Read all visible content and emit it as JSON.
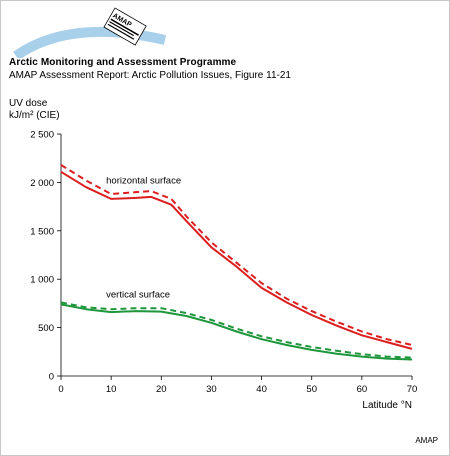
{
  "logo": {
    "text": "AMAP",
    "tagline": "Arctic Monitoring and Assessment Programme"
  },
  "header": {
    "title": "Arctic Monitoring and Assessment Programme",
    "subtitle": "AMAP Assessment Report: Arctic Pollution Issues, Figure 11-21"
  },
  "footer": {
    "credit": "AMAP"
  },
  "colors": {
    "red": "#dc1e1e",
    "green": "#1e963c",
    "logo_arc": "#a9d0ea"
  },
  "chart_data": {
    "type": "line",
    "ylabel_line1": "UV dose",
    "ylabel_line2": "kJ/m² (CIE)",
    "xlabel": "Latitude °N",
    "xlim": [
      0,
      70
    ],
    "ylim": [
      0,
      2500
    ],
    "xticks": [
      0,
      10,
      20,
      30,
      40,
      50,
      60,
      70
    ],
    "yticks": [
      0,
      500,
      1000,
      1500,
      2000,
      2500
    ],
    "ytick_labels": [
      "0",
      "500",
      "1 000",
      "1 500",
      "2 000",
      "2 500"
    ],
    "annotations": [
      {
        "text": "horizontal surface",
        "x": 9,
        "y": 1990
      },
      {
        "text": "vertical surface",
        "x": 9,
        "y": 810
      }
    ],
    "series": [
      {
        "group": "horizontal surface",
        "style": "solid",
        "color": "#dc1e1e",
        "x": [
          0,
          5,
          10,
          15,
          18,
          22,
          25,
          30,
          35,
          40,
          45,
          50,
          55,
          60,
          65,
          70
        ],
        "y": [
          2110,
          1950,
          1830,
          1840,
          1850,
          1770,
          1600,
          1330,
          1130,
          910,
          760,
          630,
          520,
          420,
          350,
          280
        ]
      },
      {
        "group": "horizontal surface",
        "style": "dashed",
        "color": "#dc1e1e",
        "x": [
          0,
          5,
          10,
          15,
          18,
          22,
          25,
          30,
          35,
          40,
          45,
          50,
          55,
          60,
          65,
          70
        ],
        "y": [
          2180,
          2020,
          1880,
          1900,
          1910,
          1830,
          1650,
          1380,
          1170,
          960,
          800,
          670,
          560,
          460,
          380,
          320
        ]
      },
      {
        "group": "vertical surface",
        "style": "solid",
        "color": "#1e963c",
        "x": [
          0,
          5,
          10,
          15,
          20,
          25,
          30,
          35,
          40,
          45,
          50,
          55,
          60,
          65,
          70
        ],
        "y": [
          740,
          690,
          660,
          670,
          665,
          620,
          550,
          460,
          380,
          320,
          270,
          230,
          200,
          180,
          170
        ]
      },
      {
        "group": "vertical surface",
        "style": "dashed",
        "color": "#1e963c",
        "x": [
          0,
          5,
          10,
          15,
          20,
          25,
          30,
          35,
          40,
          45,
          50,
          55,
          60,
          65,
          70
        ],
        "y": [
          760,
          710,
          690,
          700,
          700,
          650,
          580,
          490,
          410,
          350,
          300,
          260,
          225,
          200,
          190
        ]
      }
    ]
  }
}
